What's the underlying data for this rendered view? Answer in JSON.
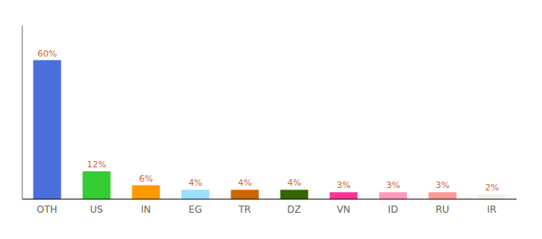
{
  "chart_data": {
    "type": "bar",
    "categories": [
      "OTH",
      "US",
      "IN",
      "EG",
      "TR",
      "DZ",
      "VN",
      "ID",
      "RU",
      "IR"
    ],
    "values": [
      60,
      12,
      6,
      4,
      4,
      4,
      3,
      3,
      3,
      2
    ],
    "value_labels": [
      "60%",
      "12%",
      "6%",
      "4%",
      "4%",
      "4%",
      "3%",
      "3%",
      "3%",
      "2%"
    ],
    "colors": [
      "#4a6fdc",
      "#33cc33",
      "#ff9900",
      "#99ddff",
      "#cc6600",
      "#336600",
      "#ff3399",
      "#ff99bb",
      "#ff9999",
      "#f5f0e8"
    ],
    "ylim": [
      0,
      75
    ],
    "yticks": [],
    "data_labels": true,
    "tick_labels": "x",
    "grid": false
  }
}
